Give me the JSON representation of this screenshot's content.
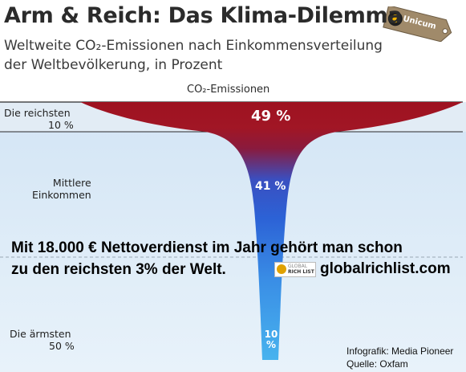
{
  "header": {
    "title": "Arm & Reich: Das Klima-Dilemma",
    "subtitle_line1": "Weltweite CO₂-Emissionen nach Einkommensverteilung",
    "subtitle_line2": "der Weltbevölkerung, in Prozent"
  },
  "brand": {
    "logo_text": "Unicum"
  },
  "overlay": {
    "line1": "Mit 18.000 € Nettoverdienst im Jahr gehört man schon",
    "line2": "zu den reichsten 3% der Welt.",
    "badge_line1": "GLOBAL",
    "badge_line2": "RICH LIST",
    "site": "globalrichlist.com"
  },
  "credits": {
    "line1": "Infografik: Media Pioneer",
    "line2": "Quelle: Oxfam"
  },
  "colors": {
    "rich": "#9e1220",
    "middle": "#2c62d6",
    "poor": "#48b3ee",
    "background_light": "#dcebf7"
  },
  "chart_data": {
    "type": "area",
    "title": "Arm & Reich: Das Klima-Dilemma",
    "subtitle": "Weltweite CO₂-Emissionen nach Einkommensverteilung der Weltbevölkerung, in Prozent",
    "series_label": "CO₂-Emissionen",
    "unit": "%",
    "categories": [
      {
        "label_line1": "Die reichsten",
        "label_line2": "10 %"
      },
      {
        "label_line1": "Mittlere",
        "label_line2": "Einkommen"
      },
      {
        "label_line1": "Die ärmsten",
        "label_line2": "50 %"
      }
    ],
    "values": [
      49,
      41,
      10
    ],
    "value_labels": [
      "49 %",
      "41 %",
      "10 %"
    ],
    "value_labels_poor_lines": [
      "10",
      "%"
    ]
  }
}
